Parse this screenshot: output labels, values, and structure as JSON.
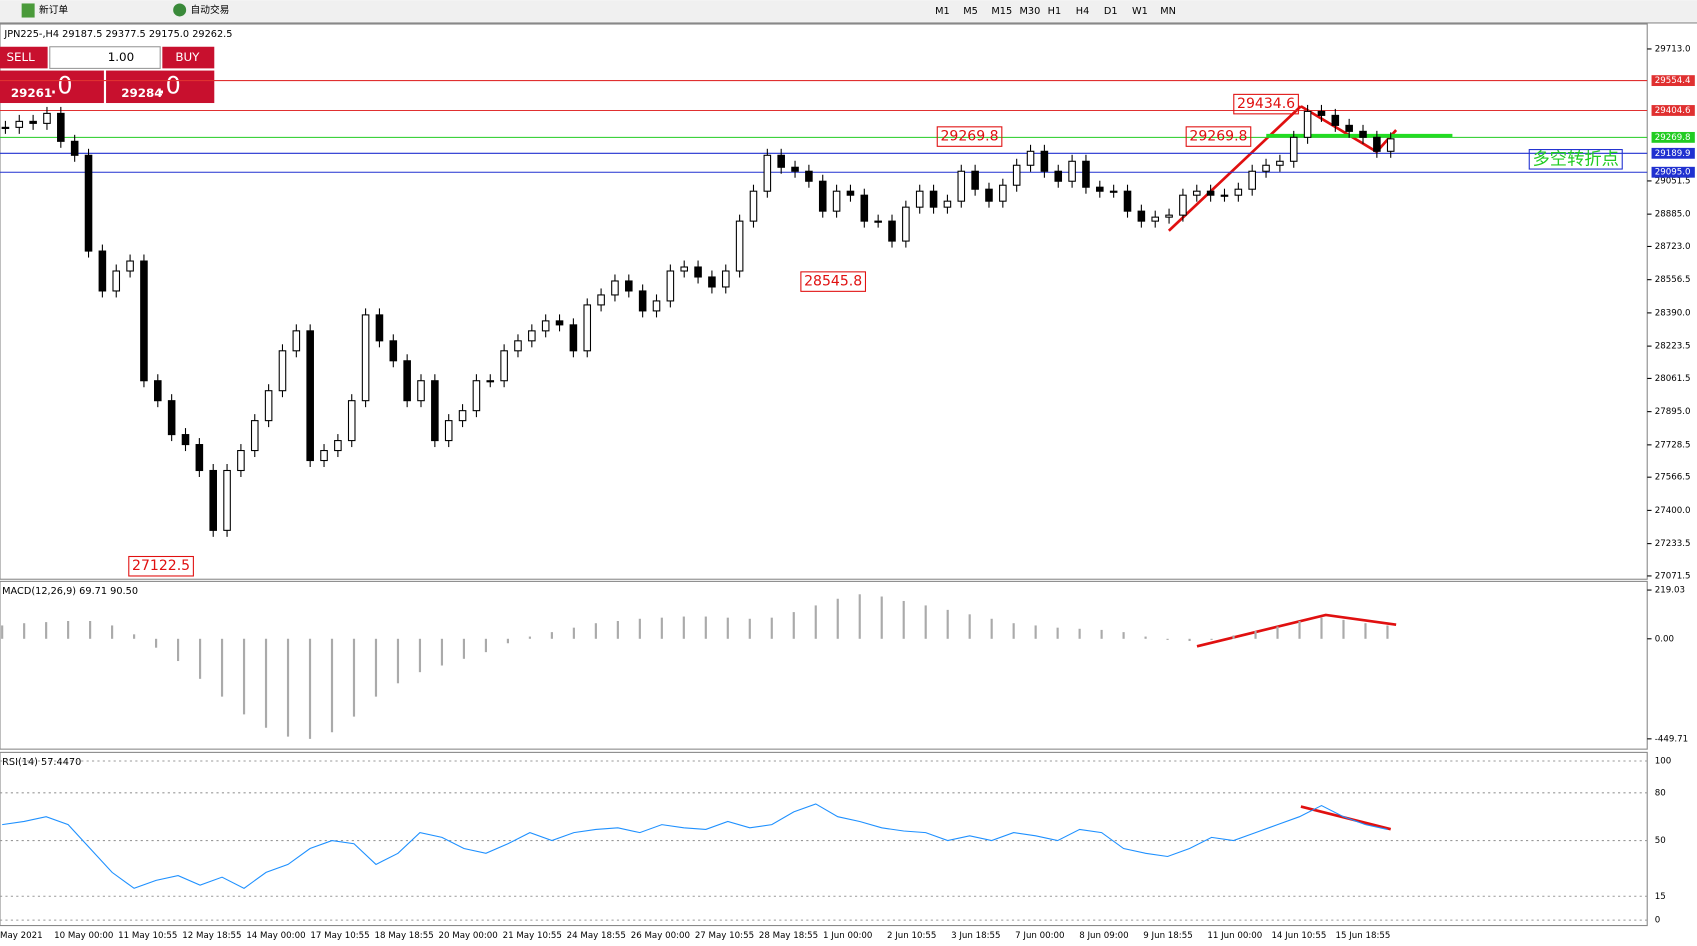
{
  "toolbar": {
    "new_order": "新订单",
    "auto_trading": "自动交易",
    "timeframes": [
      "M1",
      "M5",
      "M15",
      "M30",
      "H1",
      "H4",
      "D1",
      "W1",
      "MN"
    ]
  },
  "order_panel": {
    "sell": "SELL",
    "lots": "1.00",
    "buy": "BUY",
    "sell_price": "29261",
    "sell_pip": ".0",
    "buy_price": "29284",
    "buy_pip": ".0"
  },
  "chart_data": {
    "type": "candlestick",
    "header": "JPN225-,H4  29187.5 29377.5 29175.0 29262.5",
    "ylim": [
      27055,
      29838
    ],
    "yticks": [
      {
        "value": 29713,
        "label": "29713.0"
      },
      {
        "value": 29051.5,
        "label": "29051.5"
      },
      {
        "value": 28885,
        "label": "28885.0"
      },
      {
        "value": 28723,
        "label": "28723.0"
      },
      {
        "value": 28556.5,
        "label": "28556.5"
      },
      {
        "value": 28390,
        "label": "28390.0"
      },
      {
        "value": 28223.5,
        "label": "28223.5"
      },
      {
        "value": 28061.5,
        "label": "28061.5"
      },
      {
        "value": 27895,
        "label": "27895.0"
      },
      {
        "value": 27728.5,
        "label": "27728.5"
      },
      {
        "value": 27566.5,
        "label": "27566.5"
      },
      {
        "value": 27400,
        "label": "27400.0"
      },
      {
        "value": 27233.5,
        "label": "27233.5"
      },
      {
        "value": 27071.5,
        "label": "27071.5"
      }
    ],
    "levels": [
      {
        "value": 29554.4,
        "label": "29554.4",
        "color": "#e03030"
      },
      {
        "value": 29404.6,
        "label": "29404.6",
        "color": "#e03030"
      },
      {
        "value": 29269.8,
        "label": "29269.8",
        "color": "#22cc22"
      },
      {
        "value": 29189.9,
        "label": "29189.9",
        "color": "#2030d0"
      },
      {
        "value": 29095,
        "label": "29095.0",
        "color": "#2030d0"
      }
    ],
    "closes": [
      29320,
      29350,
      29340,
      29390,
      29250,
      29180,
      28700,
      28500,
      28600,
      28650,
      28050,
      27950,
      27780,
      27730,
      27600,
      27300,
      27600,
      27700,
      27850,
      28000,
      28200,
      28300,
      27650,
      27700,
      27750,
      27950,
      28380,
      28250,
      28150,
      27950,
      28050,
      27750,
      27850,
      27900,
      28050,
      28050,
      28200,
      28250,
      28300,
      28350,
      28330,
      28200,
      28430,
      28480,
      28550,
      28500,
      28400,
      28450,
      28600,
      28620,
      28570,
      28520,
      28600,
      28850,
      29000,
      29180,
      29120,
      29100,
      29050,
      28900,
      29000,
      28980,
      28850,
      28850,
      28750,
      28920,
      29000,
      28920,
      28950,
      29100,
      29010,
      28950,
      29030,
      29130,
      29200,
      29100,
      29050,
      29150,
      29020,
      29000,
      29000,
      28900,
      28850,
      28870,
      28880,
      28980,
      29000,
      28980,
      28980,
      29010,
      29100,
      29130,
      29150,
      29270,
      29400,
      29380,
      29330,
      29300,
      29270,
      29200,
      29262.5
    ],
    "annotations": [
      "29434.6",
      "29269.8",
      "29269.8",
      "28545.8",
      "27122.5",
      "多空转折点"
    ],
    "dates": [
      "May 2021",
      "10 May 00:00",
      "11 May 10:55",
      "12 May 18:55",
      "14 May 00:00",
      "17 May 10:55",
      "18 May 18:55",
      "20 May 00:00",
      "21 May 10:55",
      "24 May 18:55",
      "26 May 00:00",
      "27 May 10:55",
      "28 May 18:55",
      "1 Jun 00:00",
      "2 Jun 10:55",
      "3 Jun 18:55",
      "7 Jun 00:00",
      "8 Jun 09:00",
      "9 Jun 18:55",
      "11 Jun 00:00",
      "14 Jun 10:55",
      "15 Jun 18:55"
    ]
  },
  "macd": {
    "type": "bar",
    "label": "MACD(12,26,9) 69.71 90.50",
    "ylim": [
      -496,
      258
    ],
    "yticks": [
      {
        "value": 219.03,
        "label": "219.03"
      },
      {
        "value": 0,
        "label": "0.00"
      },
      {
        "value": -449.71,
        "label": "-449.71"
      }
    ],
    "values": [
      60,
      70,
      75,
      80,
      80,
      60,
      20,
      -40,
      -100,
      -180,
      -260,
      -340,
      -400,
      -440,
      -450,
      -420,
      -350,
      -260,
      -200,
      -150,
      -120,
      -90,
      -60,
      -20,
      10,
      30,
      50,
      70,
      80,
      90,
      95,
      100,
      100,
      95,
      90,
      95,
      120,
      150,
      180,
      200,
      190,
      170,
      150,
      130,
      110,
      90,
      70,
      60,
      50,
      45,
      40,
      30,
      10,
      -5,
      -10,
      -5,
      15,
      35,
      55,
      80,
      95,
      85,
      70,
      60
    ]
  },
  "rsi": {
    "type": "line",
    "label": "RSI(14) 57.4470",
    "ylim": [
      -3.4,
      105.4
    ],
    "yticks": [
      100,
      80,
      50,
      15,
      0
    ],
    "color": "#1e90ff",
    "values": [
      60,
      62,
      65,
      60,
      45,
      30,
      20,
      25,
      28,
      22,
      27,
      20,
      30,
      35,
      45,
      50,
      48,
      35,
      42,
      55,
      52,
      45,
      42,
      48,
      55,
      50,
      55,
      57,
      58,
      55,
      60,
      58,
      57,
      62,
      58,
      60,
      68,
      73,
      65,
      62,
      58,
      56,
      55,
      50,
      53,
      50,
      55,
      53,
      50,
      57,
      55,
      45,
      42,
      40,
      45,
      52,
      50,
      55,
      60,
      65,
      72,
      65,
      60,
      57
    ]
  }
}
